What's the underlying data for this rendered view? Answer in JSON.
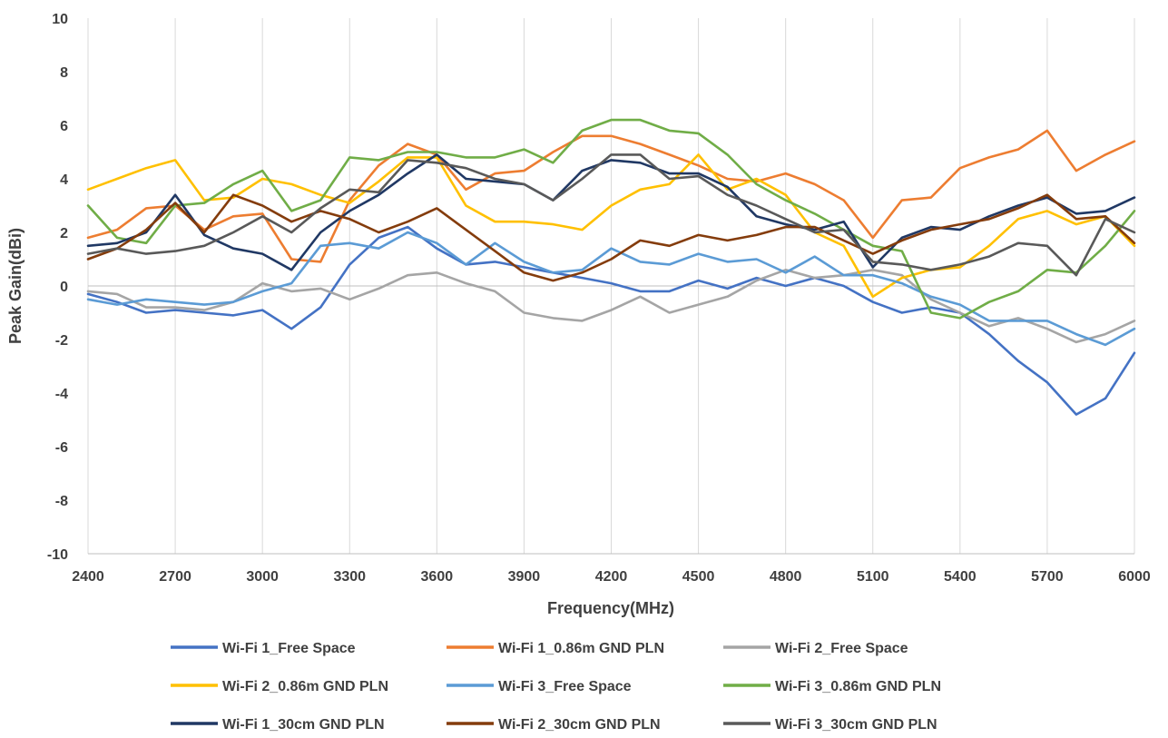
{
  "chart_data": {
    "type": "line",
    "xlabel": "Frequency(MHz)",
    "ylabel": "Peak Gain(dBi)",
    "xlim": [
      2400,
      6000
    ],
    "ylim": [
      -10,
      10
    ],
    "x_ticks": [
      2400,
      2700,
      3000,
      3300,
      3600,
      3900,
      4200,
      4500,
      4800,
      5100,
      5400,
      5700,
      6000
    ],
    "y_ticks": [
      -10,
      -8,
      -6,
      -4,
      -2,
      0,
      2,
      4,
      6,
      8,
      10
    ],
    "grid": "vertical",
    "legend_position": "bottom",
    "x": [
      2400,
      2500,
      2600,
      2700,
      2800,
      2900,
      3000,
      3100,
      3200,
      3300,
      3400,
      3500,
      3600,
      3700,
      3800,
      3900,
      4000,
      4100,
      4200,
      4300,
      4400,
      4500,
      4600,
      4700,
      4800,
      4900,
      5000,
      5100,
      5200,
      5300,
      5400,
      5500,
      5600,
      5700,
      5800,
      5900,
      6000
    ],
    "series": [
      {
        "name": "Wi-Fi 1_Free Space",
        "color": "#4472C4",
        "values": [
          -0.3,
          -0.6,
          -1.0,
          -0.9,
          -1.0,
          -1.1,
          -0.9,
          -1.6,
          -0.8,
          0.8,
          1.8,
          2.2,
          1.4,
          0.8,
          0.9,
          0.7,
          0.5,
          0.3,
          0.1,
          -0.2,
          -0.2,
          0.2,
          -0.1,
          0.3,
          0.0,
          0.3,
          0.0,
          -0.6,
          -1.0,
          -0.8,
          -1.0,
          -1.8,
          -2.8,
          -3.6,
          -4.8,
          -4.2,
          -2.5
        ]
      },
      {
        "name": "Wi-Fi 1_0.86m GND PLN",
        "color": "#ED7D31",
        "values": [
          1.8,
          2.1,
          2.9,
          3.0,
          2.1,
          2.6,
          2.7,
          1.0,
          0.9,
          3.2,
          4.5,
          5.3,
          4.9,
          3.6,
          4.2,
          4.3,
          5.0,
          5.6,
          5.6,
          5.3,
          4.9,
          4.5,
          4.0,
          3.9,
          4.2,
          3.8,
          3.2,
          1.8,
          3.2,
          3.3,
          4.4,
          4.8,
          5.1,
          5.8,
          4.3,
          4.9,
          5.4
        ]
      },
      {
        "name": "Wi-Fi 2_Free Space",
        "color": "#A5A5A5",
        "values": [
          -0.2,
          -0.3,
          -0.8,
          -0.8,
          -0.9,
          -0.6,
          0.1,
          -0.2,
          -0.1,
          -0.5,
          -0.1,
          0.4,
          0.5,
          0.1,
          -0.2,
          -1.0,
          -1.2,
          -1.3,
          -0.9,
          -0.4,
          -1.0,
          -0.7,
          -0.4,
          0.2,
          0.6,
          0.3,
          0.4,
          0.6,
          0.4,
          -0.5,
          -1.0,
          -1.5,
          -1.2,
          -1.6,
          -2.1,
          -1.8,
          -1.3
        ]
      },
      {
        "name": "Wi-Fi 2_0.86m GND PLN",
        "color": "#FFC000",
        "values": [
          3.6,
          4.0,
          4.4,
          4.7,
          3.2,
          3.3,
          4.0,
          3.8,
          3.4,
          3.1,
          3.9,
          4.8,
          4.8,
          3.0,
          2.4,
          2.4,
          2.3,
          2.1,
          3.0,
          3.6,
          3.8,
          4.9,
          3.6,
          4.0,
          3.4,
          2.0,
          1.5,
          -0.4,
          0.3,
          0.6,
          0.7,
          1.5,
          2.5,
          2.8,
          2.3,
          2.6,
          1.5
        ]
      },
      {
        "name": "Wi-Fi 3_Free Space",
        "color": "#5B9BD5",
        "values": [
          -0.5,
          -0.7,
          -0.5,
          -0.6,
          -0.7,
          -0.6,
          -0.2,
          0.1,
          1.5,
          1.6,
          1.4,
          2.0,
          1.6,
          0.8,
          1.6,
          0.9,
          0.5,
          0.6,
          1.4,
          0.9,
          0.8,
          1.2,
          0.9,
          1.0,
          0.5,
          1.1,
          0.4,
          0.4,
          0.1,
          -0.4,
          -0.7,
          -1.3,
          -1.3,
          -1.3,
          -1.8,
          -2.2,
          -1.6
        ]
      },
      {
        "name": "Wi-Fi 3_0.86m GND PLN",
        "color": "#70AD47",
        "values": [
          3.0,
          1.8,
          1.6,
          3.0,
          3.1,
          3.8,
          4.3,
          2.8,
          3.2,
          4.8,
          4.7,
          5.0,
          5.0,
          4.8,
          4.8,
          5.1,
          4.6,
          5.8,
          6.2,
          6.2,
          5.8,
          5.7,
          4.9,
          3.8,
          3.2,
          2.7,
          2.1,
          1.5,
          1.3,
          -1.0,
          -1.2,
          -0.6,
          -0.2,
          0.6,
          0.5,
          1.5,
          2.8
        ]
      },
      {
        "name": "Wi-Fi 1_30cm GND PLN",
        "color": "#203864",
        "values": [
          1.5,
          1.6,
          2.0,
          3.4,
          1.9,
          1.4,
          1.2,
          0.6,
          2.0,
          2.8,
          3.4,
          4.2,
          4.9,
          4.0,
          3.9,
          3.8,
          3.2,
          4.3,
          4.7,
          4.6,
          4.2,
          4.2,
          3.7,
          2.6,
          2.3,
          2.1,
          2.4,
          0.7,
          1.8,
          2.2,
          2.1,
          2.6,
          3.0,
          3.3,
          2.7,
          2.8,
          3.3
        ]
      },
      {
        "name": "Wi-Fi 2_30cm GND PLN",
        "color": "#843C0C",
        "values": [
          1.0,
          1.4,
          2.1,
          3.1,
          2.0,
          3.4,
          3.0,
          2.4,
          2.8,
          2.5,
          2.0,
          2.4,
          2.9,
          2.1,
          1.3,
          0.5,
          0.2,
          0.5,
          1.0,
          1.7,
          1.5,
          1.9,
          1.7,
          1.9,
          2.2,
          2.2,
          1.7,
          1.2,
          1.7,
          2.1,
          2.3,
          2.5,
          2.9,
          3.4,
          2.5,
          2.6,
          1.6
        ]
      },
      {
        "name": "Wi-Fi 3_30cm GND PLN",
        "color": "#595959",
        "values": [
          1.2,
          1.4,
          1.2,
          1.3,
          1.5,
          2.0,
          2.6,
          2.0,
          2.9,
          3.6,
          3.5,
          4.7,
          4.6,
          4.4,
          4.0,
          3.8,
          3.2,
          4.0,
          4.9,
          4.9,
          4.0,
          4.1,
          3.4,
          3.0,
          2.5,
          2.0,
          2.1,
          0.9,
          0.8,
          0.6,
          0.8,
          1.1,
          1.6,
          1.5,
          0.4,
          2.5,
          2.0
        ]
      }
    ]
  }
}
